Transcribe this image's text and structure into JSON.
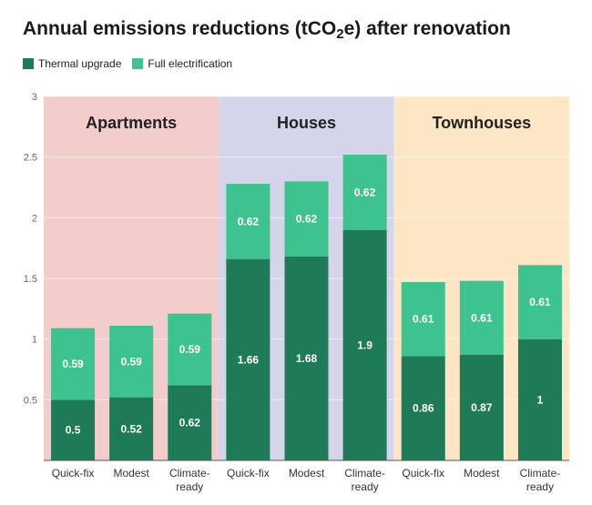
{
  "title_prefix": "Annual emissions reductions (tCO",
  "title_sub": "2",
  "title_suffix": "e) after renovation",
  "colors": {
    "thermal": "#1e7a57",
    "electrification": "#3ec28f",
    "group_backgrounds": [
      "#f3cccc",
      "#d4d5ea",
      "#fde6c5"
    ]
  },
  "chart_data": {
    "type": "bar",
    "stacked": true,
    "ylim": [
      0,
      3
    ],
    "yticks": [
      "0.5",
      "1",
      "1.5",
      "2",
      "2.5",
      "3"
    ],
    "ytick_values": [
      0.5,
      1,
      1.5,
      2,
      2.5,
      3
    ],
    "grid": true,
    "legend_position": "top-left",
    "groups": [
      {
        "name": "Apartments",
        "categories": [
          "Quick-fix",
          "Modest",
          "Climate-ready"
        ]
      },
      {
        "name": "Houses",
        "categories": [
          "Quick-fix",
          "Modest",
          "Climate-ready"
        ]
      },
      {
        "name": "Townhouses",
        "categories": [
          "Quick-fix",
          "Modest",
          "Climate-ready"
        ]
      }
    ],
    "categories": [
      "Quick-fix",
      "Modest",
      "Climate-ready",
      "Quick-fix",
      "Modest",
      "Climate-ready",
      "Quick-fix",
      "Modest",
      "Climate-ready"
    ],
    "series": [
      {
        "name": "Thermal upgrade",
        "values": [
          0.5,
          0.52,
          0.62,
          1.66,
          1.68,
          1.9,
          0.86,
          0.87,
          1
        ],
        "labels": [
          "0.5",
          "0.52",
          "0.62",
          "1.66",
          "1.68",
          "1.9",
          "0.86",
          "0.87",
          "1"
        ]
      },
      {
        "name": "Full electrification",
        "values": [
          0.59,
          0.59,
          0.59,
          0.62,
          0.62,
          0.62,
          0.61,
          0.61,
          0.61
        ],
        "labels": [
          "0.59",
          "0.59",
          "0.59",
          "0.62",
          "0.62",
          "0.62",
          "0.61",
          "0.61",
          "0.61"
        ]
      }
    ]
  }
}
